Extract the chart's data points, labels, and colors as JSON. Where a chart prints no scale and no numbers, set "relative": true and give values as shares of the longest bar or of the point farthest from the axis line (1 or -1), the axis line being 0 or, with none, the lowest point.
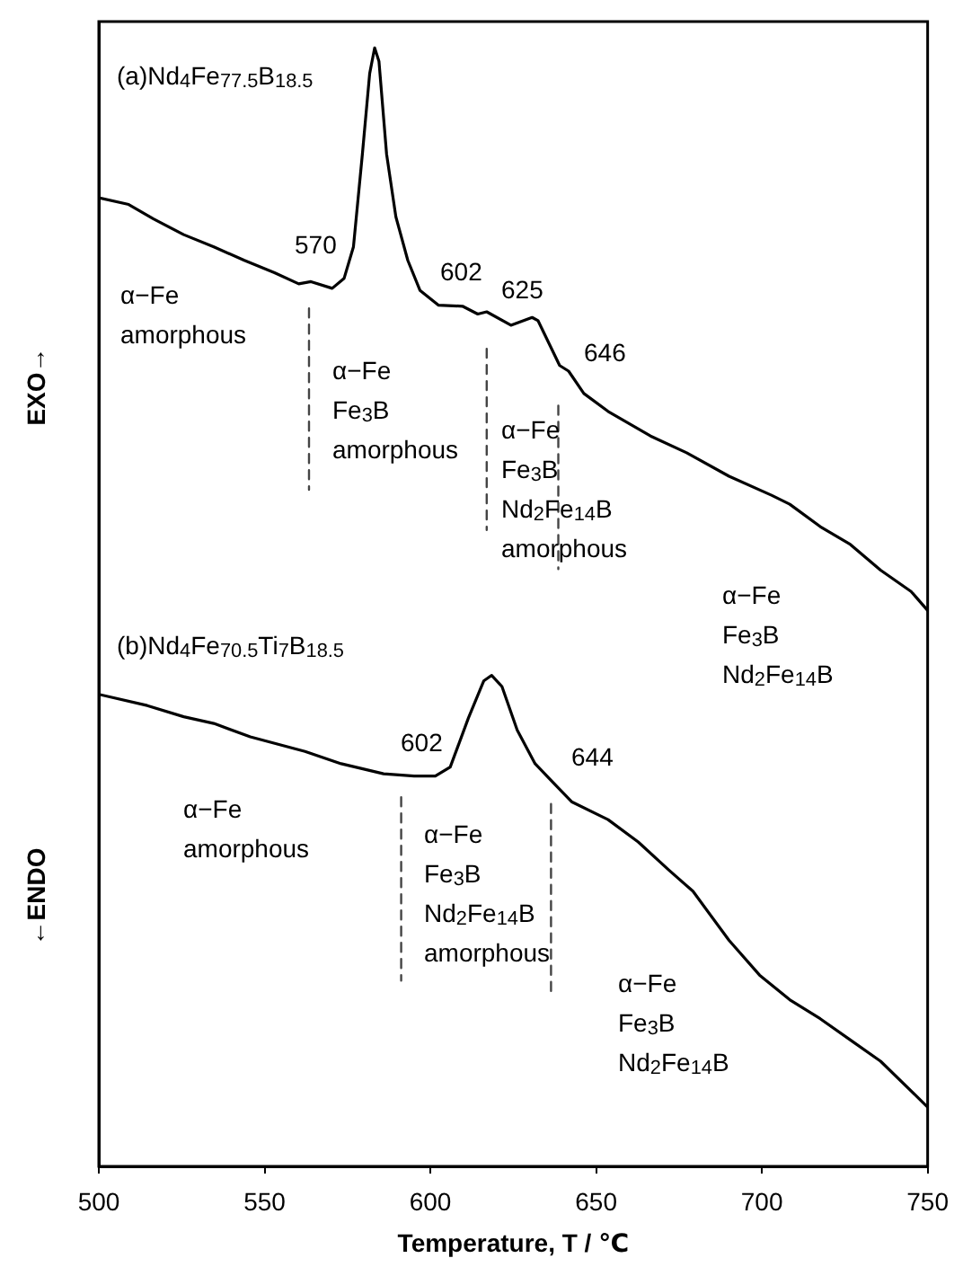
{
  "chart_data": {
    "type": "line",
    "relative": true,
    "xlabel": "Temperature, T / ℃",
    "xlim": [
      500,
      750
    ],
    "xticks": [
      500,
      550,
      600,
      650,
      700,
      750
    ],
    "grid": false,
    "legend": false,
    "marker": "none",
    "line_style": "solid",
    "series": [
      {
        "color": "#000000",
        "x": [
          500,
          509,
          516.5,
          525.6,
          534.7,
          543.9,
          553,
          560.3,
          564,
          570.4,
          574,
          576.8,
          579.5,
          581.7,
          583.2,
          584.5,
          586.8,
          589.6,
          593.2,
          596.9,
          602.4,
          609.7,
          614.3,
          617,
          624.3,
          630.7,
          632.5,
          639,
          641.7,
          646.3,
          653.6,
          666.4,
          677.3,
          690.1,
          702.9,
          708.4,
          717.6,
          726.7,
          735.8,
          745,
          750
        ],
        "values": [
          0.866,
          0.86,
          0.847,
          0.833,
          0.822,
          0.81,
          0.799,
          0.789,
          0.791,
          0.785,
          0.794,
          0.822,
          0.905,
          0.977,
          1.0,
          0.988,
          0.905,
          0.849,
          0.81,
          0.783,
          0.77,
          0.769,
          0.762,
          0.764,
          0.752,
          0.759,
          0.756,
          0.716,
          0.711,
          0.691,
          0.675,
          0.653,
          0.638,
          0.617,
          0.6,
          0.592,
          0.572,
          0.556,
          0.533,
          0.514,
          0.497
        ]
      },
      {
        "color": "#000000",
        "x": [
          500,
          514.6,
          525.6,
          534.7,
          545.7,
          562.2,
          573.1,
          585.9,
          595.1,
          601.5,
          606,
          611.5,
          616.1,
          618.5,
          621.6,
          626.2,
          631.6,
          637.1,
          642.6,
          653.6,
          662.7,
          671.9,
          679.2,
          690.1,
          699.3,
          708.4,
          717.6,
          726.7,
          735.8,
          750
        ],
        "values": [
          0.422,
          0.412,
          0.402,
          0.396,
          0.384,
          0.371,
          0.36,
          0.351,
          0.349,
          0.349,
          0.357,
          0.401,
          0.434,
          0.439,
          0.429,
          0.39,
          0.36,
          0.343,
          0.326,
          0.31,
          0.29,
          0.265,
          0.246,
          0.202,
          0.171,
          0.149,
          0.132,
          0.113,
          0.094,
          0.053
        ]
      },
      {
        "type": "line",
        "line_style": "dashed",
        "color": "#444444",
        "x": [
          563.4,
          563.4
        ],
        "values": [
          0.767,
          0.605
        ]
      },
      {
        "type": "line",
        "line_style": "dashed",
        "color": "#444444",
        "x": [
          617,
          617
        ],
        "values": [
          0.731,
          0.569
        ]
      },
      {
        "type": "line",
        "line_style": "dashed",
        "color": "#444444",
        "x": [
          638.6,
          638.6
        ],
        "values": [
          0.68,
          0.534
        ]
      },
      {
        "type": "line",
        "line_style": "dashed",
        "color": "#444444",
        "x": [
          591.2,
          591.2
        ],
        "values": [
          0.33,
          0.166
        ]
      },
      {
        "type": "line",
        "line_style": "dashed",
        "color": "#444444",
        "x": [
          636.4,
          636.4
        ],
        "values": [
          0.324,
          0.153
        ]
      }
    ],
    "annotations": [
      "EXO→",
      "←ENDO",
      "(a)Nd$_{4}$Fe$_{77.5}$B$_{18.5}$",
      "570",
      "602",
      "625",
      "646",
      "α−Fe",
      "amorphous",
      "α−Fe",
      "Fe$_{3}$B",
      "amorphous",
      "α−Fe",
      "Fe$_{3}$B",
      "Nd$_{2}$Fe$_{14}$B",
      "amorphous",
      "α−Fe",
      "Fe$_{3}$B",
      "Nd$_{2}$Fe$_{14}$B",
      "(b)Nd$_{4}$Fe$_{70.5}$Ti$_{7}$B$_{18.5}$",
      "602",
      "644",
      "α−Fe",
      "amorphous",
      "α−Fe",
      "Fe$_{3}$B",
      "Nd$_{2}$Fe$_{14}$B",
      "amorphous",
      "α−Fe",
      "Fe$_{3}$B",
      "Nd$_{2}$Fe$_{14}$B"
    ]
  }
}
